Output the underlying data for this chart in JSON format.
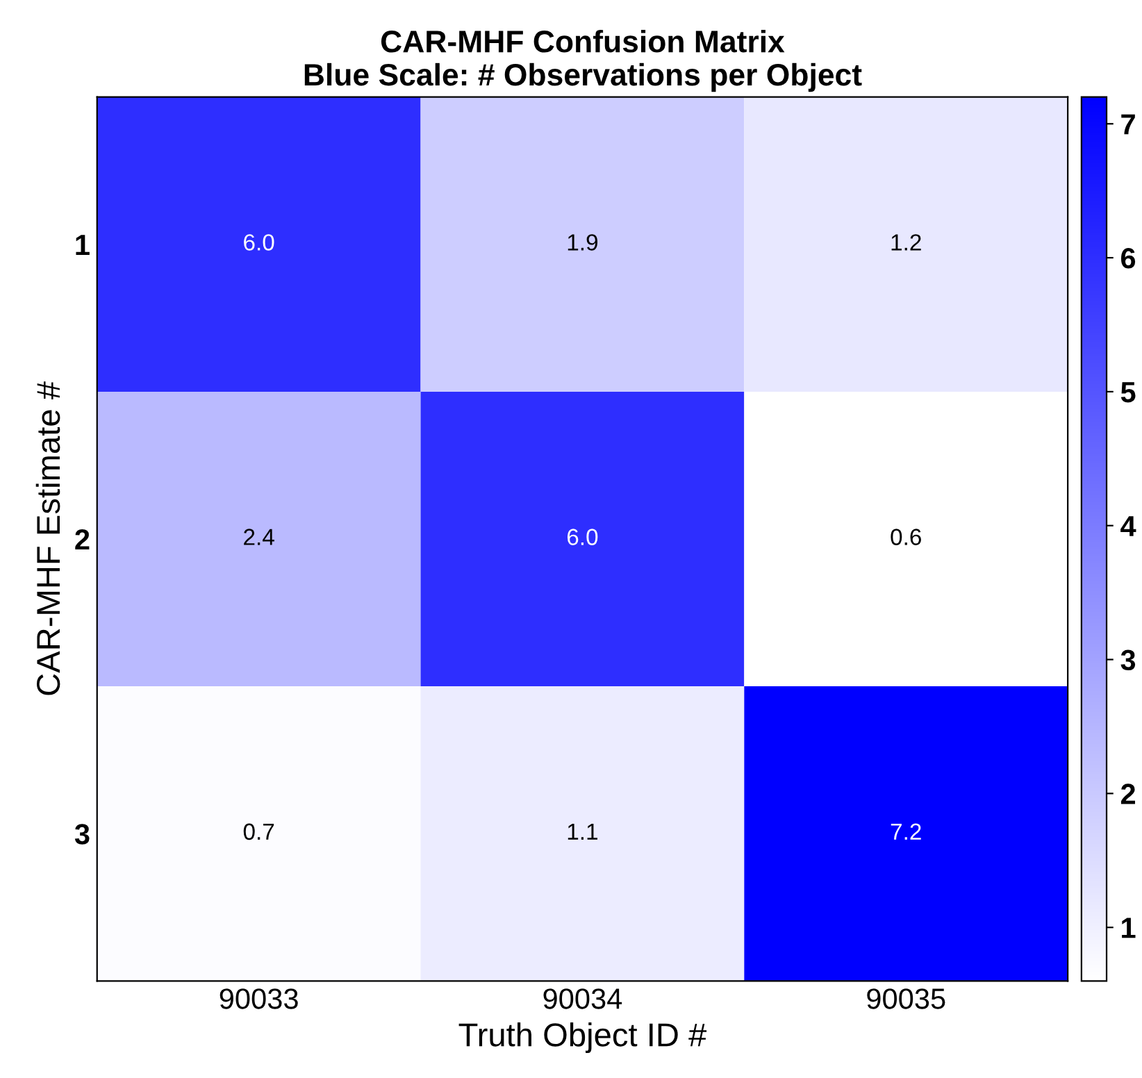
{
  "chart_data": {
    "type": "heatmap",
    "title": "CAR-MHF Confusion Matrix\nBlue Scale: # Observations per Object",
    "xlabel": "Truth Object ID #",
    "ylabel": "CAR-MHF Estimate #",
    "categories": [
      "90033",
      "90034",
      "90035"
    ],
    "y_categories": [
      "1",
      "2",
      "3"
    ],
    "cells": [
      [
        6.0,
        1.9,
        1.2
      ],
      [
        2.4,
        6.0,
        0.6
      ],
      [
        0.7,
        1.1,
        7.2
      ]
    ],
    "cell_labels": [
      [
        "6.0",
        "1.9",
        "1.2"
      ],
      [
        "2.4",
        "6.0",
        "0.6"
      ],
      [
        "0.7",
        "1.1",
        "7.2"
      ]
    ],
    "clim": [
      0.6,
      7.2
    ],
    "cticks": [
      1,
      2,
      3,
      4,
      5,
      6,
      7
    ],
    "color": "#0000ff"
  }
}
